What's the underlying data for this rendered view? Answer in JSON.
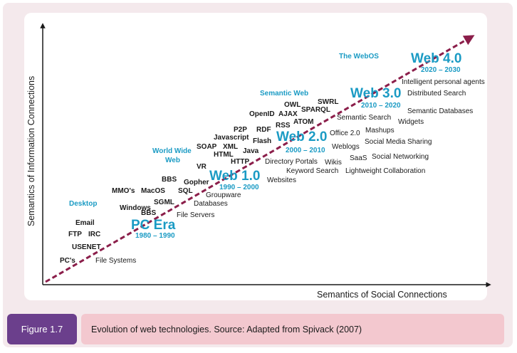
{
  "axes": {
    "x_label": "Semantics of Social Connections",
    "y_label": "Semantics of Information Connections"
  },
  "colors": {
    "category": "#1b9bc4",
    "arrow": "#8b1e4a",
    "caption_tag": "#6b3f8c",
    "caption_bg": "#f3c8cf",
    "frame_bg": "#f4e9ec"
  },
  "eras": {
    "pc": {
      "name": "PC Era",
      "years": "1980 – 1990"
    },
    "web1": {
      "name": "Web 1.0",
      "years": "1990 – 2000"
    },
    "web2": {
      "name": "Web 2.0",
      "years": "2000 – 2010"
    },
    "web3": {
      "name": "Web 3.0",
      "years": "2010 – 2020"
    },
    "web4": {
      "name": "Web 4.0",
      "years": "2020 – 2030"
    }
  },
  "categories": {
    "desktop": "Desktop",
    "www_line1": "World Wide",
    "www_line2": "Web",
    "semantic": "Semantic Web",
    "webos": "The WebOS"
  },
  "left_terms": {
    "pcs": "PC's",
    "usenet": "USENET",
    "ftp": "FTP",
    "irc": "IRC",
    "email": "Email",
    "bbs1": "BBS",
    "windows": "Windows",
    "sgml": "SGML",
    "mmos": "MMO's",
    "macos": "MacOS",
    "sql": "SQL",
    "bbs2": "BBS",
    "gopher": "Gopher",
    "vr": "VR",
    "html": "HTML",
    "soap": "SOAP",
    "xml": "XML",
    "javascript": "Javascript",
    "p2p": "P2P",
    "java": "Java",
    "http": "HTTP",
    "flash": "Flash",
    "rdf": "RDF",
    "rss": "RSS",
    "openid": "OpenID",
    "ajax": "AJAX",
    "owl": "OWL",
    "atom": "ATOM",
    "sparql": "SPARQL",
    "swrl": "SWRL"
  },
  "right_terms": {
    "filesystems": "File Systems",
    "fileservers": "File Servers",
    "databases": "Databases",
    "groupware": "Groupware",
    "websites": "Websites",
    "keywordsearch": "Keyword Search",
    "directoryportals": "Directory Portals",
    "wikis": "Wikis",
    "weblogs": "Weblogs",
    "office20": "Office 2.0",
    "saas": "SaaS",
    "lightweight": "Lightweight Collaboration",
    "socialnetworking": "Social Networking",
    "socialmediasharing": "Social Media Sharing",
    "mashups": "Mashups",
    "semanticsearch": "Semantic Search",
    "widgets": "Widgets",
    "semanticdatabases": "Semantic Databases",
    "distributedsearch": "Distributed Search",
    "intelligentagents": "Intelligent personal agents"
  },
  "caption": {
    "tag": "Figure 1.7",
    "text": "Evolution of web technologies. Source: Adapted from Spivack (2007)"
  }
}
